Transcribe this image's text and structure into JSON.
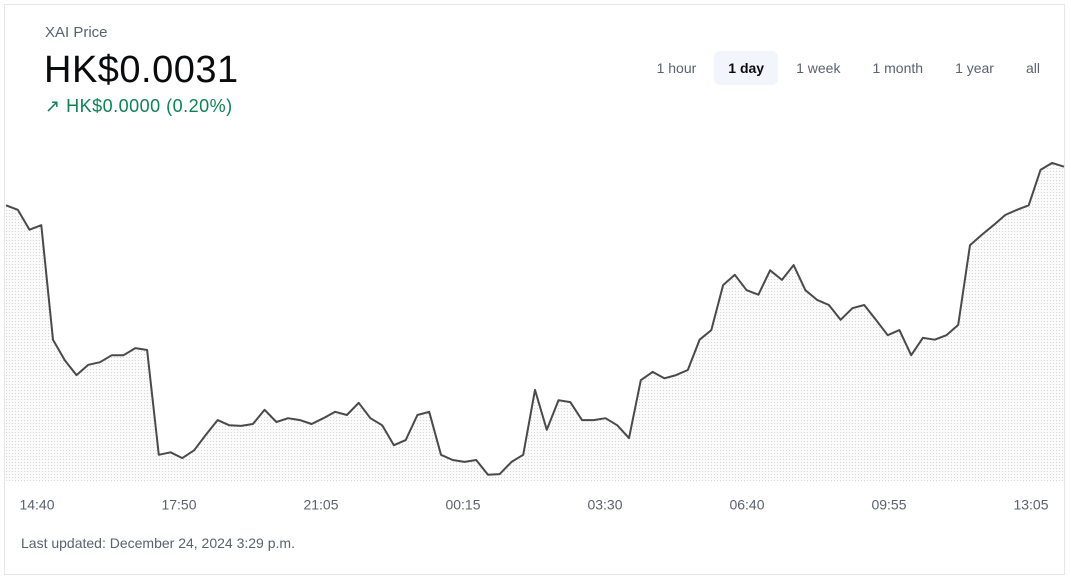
{
  "header": {
    "title": "XAI Price",
    "price": "HK$0.0031",
    "change": "↗ HK$0.0000 (0.20%)"
  },
  "tabs": {
    "items": [
      "1 hour",
      "1 day",
      "1 week",
      "1 month",
      "1 year",
      "all"
    ],
    "selected": 1
  },
  "footer": "Last updated: December 24, 2024 3:29 p.m.",
  "chart_data": {
    "type": "line",
    "color": "#4a4a4a",
    "xtick_labels": [
      "14:40",
      "17:50",
      "21:05",
      "00:15",
      "03:30",
      "06:40",
      "09:55",
      "13:05"
    ],
    "ylim": [
      0.003051,
      0.003102
    ],
    "values": [
      0.0030934,
      0.0030927,
      0.0030896,
      0.0030903,
      0.0030725,
      0.0030693,
      0.003067,
      0.0030686,
      0.003069,
      0.0030701,
      0.0030701,
      0.0030712,
      0.0030709,
      0.0030546,
      0.003055,
      0.0030541,
      0.0030553,
      0.0030577,
      0.00306,
      0.0030592,
      0.0030591,
      0.0030594,
      0.0030616,
      0.0030597,
      0.0030603,
      0.00306,
      0.0030594,
      0.0030603,
      0.0030613,
      0.0030608,
      0.0030627,
      0.0030603,
      0.0030592,
      0.0030561,
      0.0030569,
      0.0030608,
      0.0030613,
      0.0030546,
      0.0030538,
      0.0030535,
      0.0030538,
      0.0030515,
      0.0030516,
      0.0030535,
      0.0030546,
      0.0030647,
      0.0030585,
      0.0030631,
      0.0030628,
      0.00306,
      0.00306,
      0.0030603,
      0.0030592,
      0.0030572,
      0.0030662,
      0.0030675,
      0.0030665,
      0.003067,
      0.0030678,
      0.0030725,
      0.003074,
      0.003081,
      0.0030826,
      0.0030802,
      0.0030795,
      0.0030833,
      0.0030818,
      0.0030841,
      0.0030802,
      0.0030787,
      0.0030779,
      0.0030756,
      0.0030774,
      0.0030779,
      0.0030756,
      0.0030732,
      0.003074,
      0.0030701,
      0.0030728,
      0.0030725,
      0.0030732,
      0.0030748,
      0.0030872,
      0.0030888,
      0.0030903,
      0.0030919,
      0.0030927,
      0.0030934,
      0.0030989,
      0.0031,
      0.0030994
    ]
  }
}
